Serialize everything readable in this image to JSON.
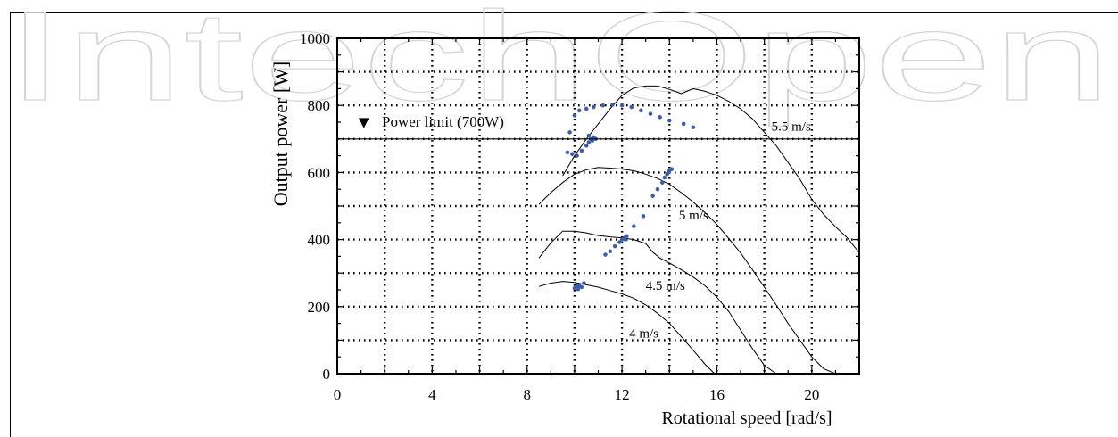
{
  "watermark": {
    "text": "IntechOpen",
    "color": "#d4d4d4"
  },
  "chart_data": {
    "type": "line",
    "xlabel": "Rotational speed [rad/s]",
    "ylabel": "Output power [W]",
    "xlim": [
      0,
      22
    ],
    "ylim": [
      0,
      1000
    ],
    "xticks": [
      0,
      4,
      8,
      12,
      16,
      20
    ],
    "yticks": [
      0,
      200,
      400,
      600,
      800,
      1000
    ],
    "grid": true,
    "grid_style": "dotted",
    "power_limit": {
      "value": 700,
      "label": "Power limit (700W)",
      "marker": "▼"
    },
    "series": [
      {
        "name": "4 m/s",
        "label_at": [
          12.3,
          108
        ],
        "x": [
          8.5,
          9.0,
          9.5,
          10.0,
          10.5,
          11.0,
          11.5,
          12.0,
          12.5,
          13.0,
          13.5,
          14.0,
          14.5,
          15.0,
          15.5,
          15.9
        ],
        "values": [
          260,
          270,
          275,
          272,
          265,
          258,
          248,
          238,
          225,
          205,
          180,
          150,
          110,
          70,
          28,
          0
        ]
      },
      {
        "name": "4.5 m/s",
        "label_at": [
          13.0,
          250
        ],
        "x": [
          8.5,
          9.0,
          9.5,
          10.0,
          10.5,
          11.0,
          11.5,
          12.0,
          12.5,
          13.0,
          13.3,
          13.6,
          14.0,
          14.5,
          15.0,
          15.5,
          16.0,
          16.5,
          17.0,
          17.5,
          18.0,
          18.5
        ],
        "values": [
          345,
          390,
          425,
          425,
          420,
          412,
          408,
          405,
          400,
          388,
          362,
          345,
          330,
          310,
          288,
          262,
          228,
          185,
          130,
          75,
          25,
          0
        ]
      },
      {
        "name": "5 m/s",
        "label_at": [
          14.4,
          460
        ],
        "x": [
          8.5,
          9.0,
          9.5,
          10.0,
          10.5,
          11.0,
          11.5,
          12.0,
          12.5,
          13.0,
          13.5,
          14.0,
          14.5,
          15.0,
          15.5,
          16.0,
          16.5,
          17.0,
          17.5,
          18.0,
          18.5,
          19.0,
          19.5,
          20.0,
          20.5,
          21.0,
          21.5
        ],
        "values": [
          505,
          540,
          570,
          595,
          608,
          615,
          613,
          610,
          605,
          595,
          582,
          565,
          540,
          512,
          480,
          445,
          403,
          360,
          310,
          258,
          205,
          150,
          100,
          50,
          15,
          0,
          0
        ]
      },
      {
        "name": "5.5 m/s",
        "label_at": [
          18.3,
          725
        ],
        "x": [
          9.5,
          10.0,
          10.5,
          11.0,
          11.5,
          12.0,
          12.5,
          13.0,
          13.5,
          14.0,
          14.5,
          15.0,
          15.5,
          16.0,
          16.5,
          17.0,
          17.5,
          18.0,
          18.5,
          19.0,
          19.5,
          20.0,
          20.5,
          21.0,
          21.5,
          22.0
        ],
        "values": [
          590,
          650,
          700,
          745,
          790,
          830,
          852,
          858,
          858,
          848,
          835,
          850,
          842,
          830,
          812,
          790,
          760,
          720,
          680,
          630,
          580,
          520,
          475,
          438,
          405,
          360
        ]
      }
    ],
    "operating_points": [
      {
        "x": 9.8,
        "y": 720
      },
      {
        "x": 10.0,
        "y": 770
      },
      {
        "x": 10.2,
        "y": 785
      },
      {
        "x": 10.5,
        "y": 790
      },
      {
        "x": 10.8,
        "y": 795
      },
      {
        "x": 11.2,
        "y": 800
      },
      {
        "x": 11.6,
        "y": 802
      },
      {
        "x": 12.0,
        "y": 800
      },
      {
        "x": 12.4,
        "y": 795
      },
      {
        "x": 12.8,
        "y": 785
      },
      {
        "x": 13.2,
        "y": 775
      },
      {
        "x": 13.6,
        "y": 765
      },
      {
        "x": 14.0,
        "y": 755
      },
      {
        "x": 14.6,
        "y": 745
      },
      {
        "x": 15.0,
        "y": 735
      },
      {
        "x": 9.7,
        "y": 660
      },
      {
        "x": 9.9,
        "y": 655
      },
      {
        "x": 10.1,
        "y": 650
      },
      {
        "x": 10.3,
        "y": 665
      },
      {
        "x": 10.5,
        "y": 680
      },
      {
        "x": 10.6,
        "y": 690
      },
      {
        "x": 10.7,
        "y": 700
      },
      {
        "x": 10.8,
        "y": 705
      },
      {
        "x": 10.9,
        "y": 700
      },
      {
        "x": 10.6,
        "y": 710
      },
      {
        "x": 10.75,
        "y": 695
      },
      {
        "x": 11.3,
        "y": 355
      },
      {
        "x": 11.5,
        "y": 365
      },
      {
        "x": 11.7,
        "y": 380
      },
      {
        "x": 11.9,
        "y": 392
      },
      {
        "x": 12.0,
        "y": 400
      },
      {
        "x": 12.1,
        "y": 405
      },
      {
        "x": 12.2,
        "y": 410
      },
      {
        "x": 12.15,
        "y": 400
      },
      {
        "x": 12.5,
        "y": 440
      },
      {
        "x": 12.9,
        "y": 470
      },
      {
        "x": 13.3,
        "y": 530
      },
      {
        "x": 13.5,
        "y": 550
      },
      {
        "x": 13.7,
        "y": 570
      },
      {
        "x": 13.8,
        "y": 585
      },
      {
        "x": 13.9,
        "y": 595
      },
      {
        "x": 14.0,
        "y": 605
      },
      {
        "x": 14.1,
        "y": 610
      },
      {
        "x": 13.95,
        "y": 600
      },
      {
        "x": 10.0,
        "y": 255
      },
      {
        "x": 10.1,
        "y": 260
      },
      {
        "x": 10.2,
        "y": 262
      },
      {
        "x": 10.3,
        "y": 258
      },
      {
        "x": 10.15,
        "y": 252
      },
      {
        "x": 10.4,
        "y": 270
      }
    ],
    "colors": {
      "curve": "#000000",
      "points": "#3b5ba5",
      "grid": "#000000"
    }
  }
}
